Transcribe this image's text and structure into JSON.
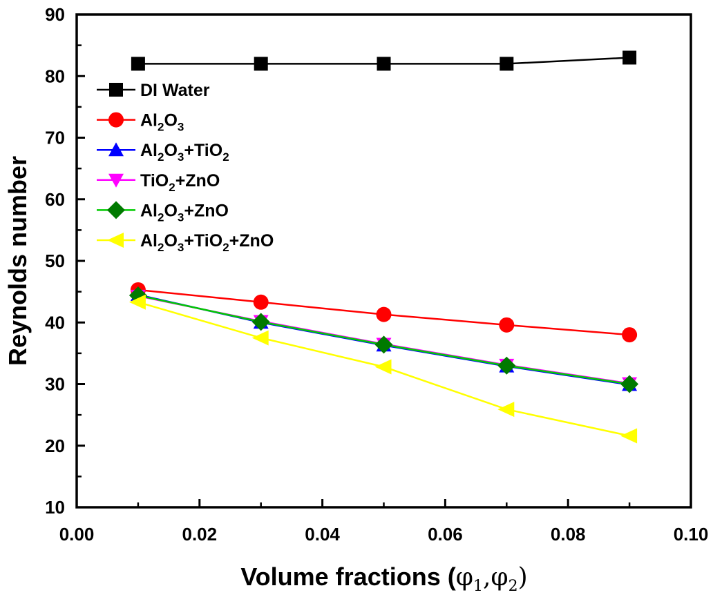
{
  "chart_data": {
    "type": "line",
    "title": "",
    "xlabel_main": "Volume fractions (",
    "xlabel_phi1": "φ",
    "xlabel_phi1_sub": "1",
    "xlabel_comma": ",",
    "xlabel_phi2": "φ",
    "xlabel_phi2_sub": "2",
    "xlabel_close": ")",
    "ylabel": "Reynolds number",
    "xlim": [
      0.0,
      0.1
    ],
    "ylim": [
      10,
      90
    ],
    "xticks": [
      "0.00",
      "0.02",
      "0.04",
      "0.06",
      "0.08",
      "0.10"
    ],
    "yticks": [
      "10",
      "20",
      "30",
      "40",
      "50",
      "60",
      "70",
      "80",
      "90"
    ],
    "x": [
      0.01,
      0.03,
      0.05,
      0.07,
      0.09
    ],
    "legend_position": "upper-left",
    "series": [
      {
        "name": "DI Water",
        "parts": [
          [
            "DI Water",
            false
          ]
        ],
        "color": "#000000",
        "marker": "square",
        "values": [
          82,
          82,
          82,
          82,
          83
        ]
      },
      {
        "name": "Al2O3",
        "parts": [
          [
            "Al",
            false
          ],
          [
            "2",
            true
          ],
          [
            "O",
            false
          ],
          [
            "3",
            true
          ]
        ],
        "color": "#ff0000",
        "marker": "circle",
        "values": [
          45.3,
          43.3,
          41.3,
          39.6,
          38.0
        ]
      },
      {
        "name": "Al2O3+TiO2",
        "parts": [
          [
            "Al",
            false
          ],
          [
            "2",
            true
          ],
          [
            "O",
            false
          ],
          [
            "3",
            true
          ],
          [
            "+TiO",
            false
          ],
          [
            "2",
            true
          ]
        ],
        "color": "#0000ff",
        "marker": "triangle-up",
        "values": [
          44.5,
          40.0,
          36.3,
          32.9,
          29.9
        ]
      },
      {
        "name": "TiO2+ZnO",
        "parts": [
          [
            "TiO",
            false
          ],
          [
            "2",
            true
          ],
          [
            "+ZnO",
            false
          ]
        ],
        "color": "#ff00ff",
        "marker": "triangle-down",
        "values": [
          44.3,
          40.2,
          36.5,
          33.1,
          30.1
        ]
      },
      {
        "name": "Al2O3+ZnO",
        "parts": [
          [
            "Al",
            false
          ],
          [
            "2",
            true
          ],
          [
            "O",
            false
          ],
          [
            "3",
            true
          ],
          [
            "+ZnO",
            false
          ]
        ],
        "color": "#00cc00",
        "marker": "diamond",
        "values": [
          44.4,
          40.1,
          36.4,
          33.0,
          30.0
        ]
      },
      {
        "name": "Al2O3+TiO2+ZnO",
        "parts": [
          [
            "Al",
            false
          ],
          [
            "2",
            true
          ],
          [
            "O",
            false
          ],
          [
            "3",
            true
          ],
          [
            "+TiO",
            false
          ],
          [
            "2",
            true
          ],
          [
            "+ZnO",
            false
          ]
        ],
        "color": "#ffff00",
        "marker": "triangle-left",
        "values": [
          43.3,
          37.5,
          32.8,
          25.9,
          21.6
        ]
      }
    ]
  },
  "colors": {
    "marker_fill_green": "#007a00",
    "axis": "#000000"
  }
}
